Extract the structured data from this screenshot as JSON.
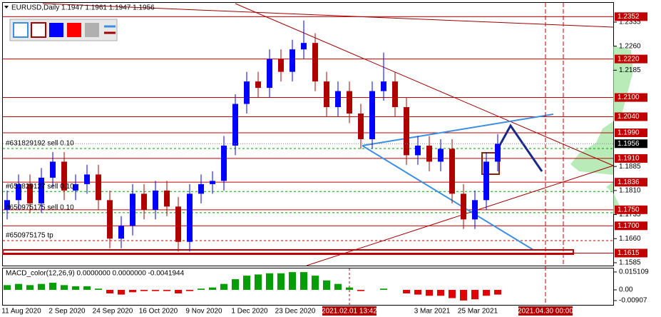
{
  "chart_data": [
    {
      "type": "candlestick",
      "title": "EURUSD,Daily  1.1947 1.1961 1.1947 1.1956",
      "categories": [
        null,
        "11 Aug 2020",
        null,
        null,
        null,
        "2 Sep 2020",
        null,
        null,
        null,
        "24 Sep 2020",
        null,
        null,
        null,
        "16 Oct 2020",
        null,
        null,
        null,
        "9 Nov 2020",
        null,
        null,
        null,
        "1 Dec 2020",
        null,
        null,
        null,
        "23 Dec 2020",
        null,
        null,
        null,
        null,
        null,
        null,
        null,
        null,
        null,
        null,
        null,
        "3 Mar 2021",
        null,
        null,
        null,
        "25 Mar 2021",
        null,
        null
      ],
      "open": [
        1.175,
        1.178,
        1.183,
        1.177,
        1.185,
        1.19,
        1.181,
        1.183,
        1.186,
        1.178,
        1.166,
        1.17,
        1.18,
        1.175,
        1.181,
        1.176,
        1.165,
        1.18,
        1.183,
        1.184,
        1.195,
        1.208,
        1.215,
        1.213,
        1.222,
        1.218,
        1.225,
        1.227,
        1.215,
        1.207,
        1.212,
        1.205,
        1.197,
        1.212,
        1.215,
        1.207,
        1.192,
        1.195,
        1.19,
        1.194,
        1.18,
        1.172,
        1.178,
        1.19
      ],
      "high": [
        1.181,
        1.186,
        1.186,
        1.188,
        1.193,
        1.193,
        1.186,
        1.189,
        1.189,
        1.181,
        1.173,
        1.183,
        1.183,
        1.184,
        1.184,
        1.179,
        1.183,
        1.186,
        1.187,
        1.198,
        1.211,
        1.218,
        1.218,
        1.225,
        1.225,
        1.228,
        1.234,
        1.23,
        1.218,
        1.215,
        1.215,
        1.208,
        1.215,
        1.224,
        1.218,
        1.21,
        1.198,
        1.198,
        1.197,
        1.197,
        1.183,
        1.181,
        1.193,
        1.1986
      ],
      "low": [
        1.172,
        1.175,
        1.174,
        1.174,
        1.182,
        1.178,
        1.178,
        1.18,
        1.175,
        1.163,
        1.163,
        1.167,
        1.172,
        1.172,
        1.173,
        1.162,
        1.162,
        1.177,
        1.18,
        1.181,
        1.192,
        1.205,
        1.21,
        1.21,
        1.215,
        1.215,
        1.222,
        1.212,
        1.204,
        1.204,
        1.202,
        1.194,
        1.194,
        1.209,
        1.204,
        1.189,
        1.189,
        1.187,
        1.187,
        1.177,
        1.169,
        1.169,
        1.175,
        1.187
      ],
      "close": [
        1.178,
        1.183,
        1.177,
        1.185,
        1.19,
        1.181,
        1.183,
        1.186,
        1.178,
        1.166,
        1.17,
        1.18,
        1.175,
        1.181,
        1.176,
        1.165,
        1.18,
        1.183,
        1.184,
        1.195,
        1.208,
        1.215,
        1.213,
        1.222,
        1.218,
        1.225,
        1.227,
        1.215,
        1.207,
        1.212,
        1.205,
        1.197,
        1.212,
        1.215,
        1.207,
        1.192,
        1.195,
        1.19,
        1.194,
        1.18,
        1.172,
        1.178,
        1.19,
        1.1956
      ],
      "up_color": "#0000ff",
      "down_color": "#b00000",
      "ylim": [
        1.1576,
        1.2395
      ],
      "yticks": [
        1.2335,
        {
          "value": 1.226,
          "label": "1.2260"
        },
        1.2185,
        1.1885,
        {
          "value": 1.181,
          "label": "1.1810"
        },
        1.1735,
        {
          "value": 1.166,
          "label": "1.1660"
        },
        1.1585
      ],
      "levels": [
        1.2352,
        {
          "value": 1.222,
          "label": "1.2220"
        },
        {
          "value": 1.21,
          "label": "1.2100"
        },
        {
          "value": 1.204,
          "label": "1.2040"
        },
        {
          "value": 1.199,
          "label": "1.1990"
        },
        {
          "value": 1.191,
          "label": "1.1910"
        },
        1.1836,
        {
          "value": 1.175,
          "label": "1.1750"
        },
        {
          "value": 1.17,
          "label": "1.1700"
        },
        1.1615
      ],
      "level_color": "#c00000",
      "current_price": 1.1956,
      "orders": [
        {
          "label": "#631829192 sell 0.10",
          "price": 1.1941
        },
        {
          "label": "#651829127 sell 0.10",
          "price": 1.1807
        },
        {
          "label": "#650975175 sell 0.10",
          "price": 1.1741
        },
        {
          "label": "#650975175 tp",
          "price": 1.1654
        }
      ],
      "cursor_label": "2021.02.01 13:42",
      "end_label": "2021.04.30 00:00"
    },
    {
      "type": "bar",
      "title": "MACD_color(12,26,9) 0.0000000 0.0000000 -0.0041944",
      "values": [
        0.004,
        0.005,
        0.004,
        0.005,
        0.006,
        0.004,
        0.003,
        0.003,
        0.001,
        -0.003,
        -0.004,
        -0.002,
        -0.001,
        -0.001,
        -0.001,
        -0.003,
        -0.001,
        0.001,
        0.002,
        0.005,
        0.009,
        0.012,
        0.013,
        0.014,
        0.014,
        0.015,
        0.015,
        0.012,
        0.008,
        0.005,
        0.002,
        -0.001,
        0.0,
        0.001,
        0.0,
        -0.003,
        -0.004,
        -0.005,
        -0.005,
        -0.007,
        -0.009,
        -0.008,
        -0.005,
        -0.004
      ],
      "up_color": "#00a000",
      "down_color": "#e00000",
      "ylim": [
        -0.0133,
        0.0181
      ],
      "yticks": [
        0.015109,
        {
          "value": 0,
          "label": "0.00"
        },
        -0.00907
      ]
    }
  ]
}
